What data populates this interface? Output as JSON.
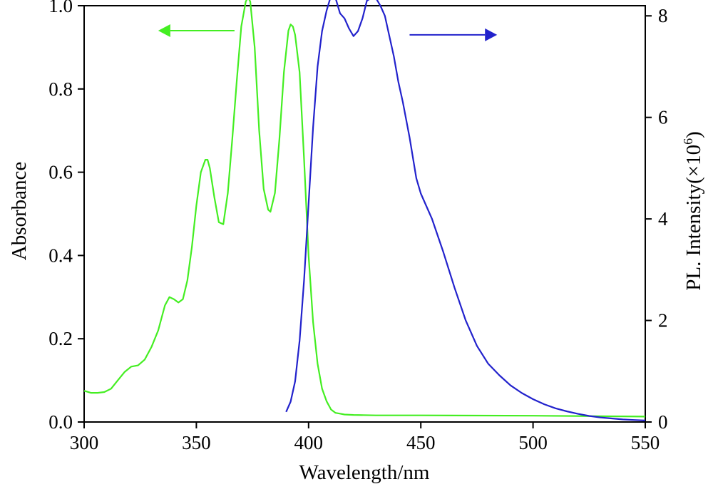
{
  "chart_data": {
    "type": "line",
    "xlabel": "Wavelength/nm",
    "ylabel_left": "Absorbance",
    "ylabel_right_main": "PL. Intensity(×10",
    "ylabel_right_sup": "6",
    "ylabel_right_end": ")",
    "xlim": [
      300,
      550
    ],
    "ylim_left": [
      0,
      1.0
    ],
    "ylim_right": [
      0,
      8.2
    ],
    "x_ticks": [
      300,
      350,
      400,
      450,
      500,
      550
    ],
    "x_tick_labels": [
      "300",
      "350",
      "400",
      "450",
      "500",
      "550"
    ],
    "y_left_ticks": [
      0.0,
      0.2,
      0.4,
      0.6,
      0.8,
      1.0
    ],
    "y_left_tick_labels": [
      "0.0",
      "0.2",
      "0.4",
      "0.6",
      "0.8",
      "1.0"
    ],
    "y_right_ticks": [
      0,
      2,
      4,
      6,
      8
    ],
    "y_right_tick_labels": [
      "0",
      "2",
      "4",
      "6",
      "8"
    ],
    "grid": false,
    "legend": "none",
    "series": [
      {
        "axis": "left",
        "color": "#44ee22",
        "x": [
          300,
          303,
          306,
          309,
          312,
          315,
          318,
          321,
          324,
          327,
          330,
          333,
          336,
          338,
          340,
          342,
          344,
          346,
          348,
          350,
          352,
          354,
          355,
          356,
          358,
          360,
          362,
          364,
          366,
          368,
          370,
          372,
          373,
          374,
          376,
          378,
          380,
          382,
          383,
          385,
          387,
          389,
          391,
          392,
          393,
          394,
          396,
          398,
          400,
          402,
          404,
          406,
          408,
          410,
          412,
          414,
          416,
          420,
          430,
          450,
          500,
          550
        ],
        "y": [
          0.075,
          0.07,
          0.07,
          0.072,
          0.08,
          0.1,
          0.12,
          0.133,
          0.136,
          0.15,
          0.18,
          0.22,
          0.28,
          0.3,
          0.295,
          0.287,
          0.295,
          0.34,
          0.42,
          0.52,
          0.6,
          0.63,
          0.63,
          0.61,
          0.54,
          0.48,
          0.475,
          0.55,
          0.68,
          0.82,
          0.95,
          1.01,
          1.02,
          1.01,
          0.9,
          0.7,
          0.56,
          0.51,
          0.505,
          0.55,
          0.68,
          0.84,
          0.94,
          0.955,
          0.95,
          0.93,
          0.84,
          0.63,
          0.4,
          0.24,
          0.14,
          0.08,
          0.05,
          0.03,
          0.022,
          0.02,
          0.018,
          0.017,
          0.016,
          0.016,
          0.015,
          0.013
        ]
      },
      {
        "axis": "right",
        "color": "#2222cc",
        "x": [
          390,
          392,
          394,
          396,
          398,
          400,
          402,
          404,
          406,
          408,
          410,
          412,
          414,
          416,
          418,
          420,
          422,
          424,
          426,
          428,
          430,
          432,
          434,
          436,
          438,
          440,
          442,
          445,
          448,
          450,
          455,
          460,
          465,
          470,
          475,
          480,
          485,
          490,
          495,
          500,
          505,
          510,
          515,
          520,
          525,
          530,
          535,
          540,
          545,
          550
        ],
        "y": [
          0.2,
          0.4,
          0.8,
          1.6,
          2.8,
          4.3,
          5.8,
          7.0,
          7.7,
          8.1,
          8.4,
          8.35,
          8.05,
          7.95,
          7.75,
          7.6,
          7.7,
          7.95,
          8.3,
          8.35,
          8.35,
          8.2,
          8.0,
          7.6,
          7.2,
          6.7,
          6.3,
          5.6,
          4.8,
          4.5,
          4.0,
          3.35,
          2.65,
          2.0,
          1.5,
          1.15,
          0.92,
          0.72,
          0.57,
          0.45,
          0.35,
          0.27,
          0.21,
          0.16,
          0.12,
          0.09,
          0.07,
          0.05,
          0.04,
          0.03
        ]
      }
    ],
    "annotations": [
      {
        "type": "arrow",
        "direction": "left",
        "color": "#44ee22",
        "x_from": 367,
        "x_to": 333,
        "y_left": 0.94
      },
      {
        "type": "arrow",
        "direction": "right",
        "color": "#2222cc",
        "x_from": 445,
        "x_to": 484,
        "y_left": 0.93
      }
    ]
  }
}
